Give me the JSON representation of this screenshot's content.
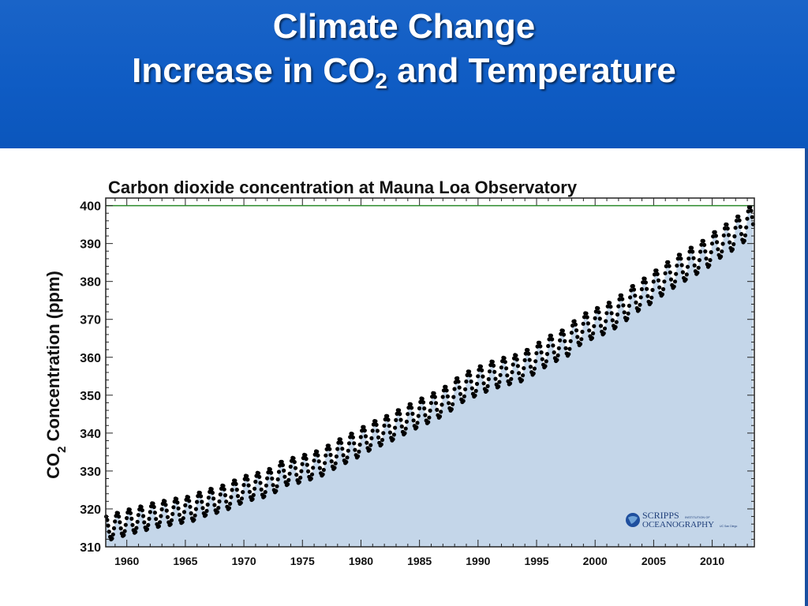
{
  "slide": {
    "title_line1": "Climate Change",
    "title_line2_pre": "Increase in CO",
    "title_line2_sub": "2",
    "title_line2_post": " and Temperature"
  },
  "colors": {
    "header_blue": "#1a64c8",
    "area_fill": "#c4d6e9",
    "data_points": "#000000",
    "reference_line": "#2a8a2a"
  },
  "logo": {
    "text_main_1": "SCRIPPS",
    "text_small": "INSTITUTION OF",
    "text_main_2": "OCEANOGRAPHY",
    "text_tiny": "UC San Diego"
  },
  "chart_data": {
    "type": "scatter",
    "title": "Carbon dioxide concentration at Mauna Loa Observatory",
    "ylabel_pre": "CO",
    "ylabel_sub": "2",
    "ylabel_post": " Concentration (ppm)",
    "xlabel": "",
    "xlim": [
      1958.2,
      2013.6
    ],
    "ylim": [
      310,
      402
    ],
    "x_ticks": [
      1960,
      1965,
      1970,
      1975,
      1980,
      1985,
      1990,
      1995,
      2000,
      2005,
      2010
    ],
    "y_ticks": [
      310,
      320,
      330,
      340,
      350,
      360,
      370,
      380,
      390,
      400
    ],
    "reference_line_y": 400,
    "area_fill_under_series": true,
    "grid": false,
    "series": [
      {
        "values_note": "annual mean CO2 (ppm)",
        "x": [
          1959,
          1960,
          1961,
          1962,
          1963,
          1964,
          1965,
          1966,
          1967,
          1968,
          1969,
          1970,
          1971,
          1972,
          1973,
          1974,
          1975,
          1976,
          1977,
          1978,
          1979,
          1980,
          1981,
          1982,
          1983,
          1984,
          1985,
          1986,
          1987,
          1988,
          1989,
          1990,
          1991,
          1992,
          1993,
          1994,
          1995,
          1996,
          1997,
          1998,
          1999,
          2000,
          2001,
          2002,
          2003,
          2004,
          2005,
          2006,
          2007,
          2008,
          2009,
          2010,
          2011,
          2012,
          2013
        ],
        "y": [
          316.0,
          316.9,
          317.6,
          318.5,
          319.0,
          319.6,
          320.0,
          321.4,
          322.2,
          323.1,
          324.6,
          325.7,
          326.3,
          327.5,
          329.7,
          330.2,
          331.1,
          332.0,
          333.8,
          335.4,
          336.8,
          338.7,
          340.1,
          341.4,
          343.0,
          344.6,
          346.0,
          347.4,
          349.2,
          351.6,
          353.1,
          354.4,
          355.6,
          356.5,
          357.1,
          358.8,
          360.8,
          362.6,
          363.7,
          366.7,
          368.4,
          369.6,
          371.1,
          373.2,
          375.8,
          377.5,
          379.8,
          381.9,
          383.8,
          385.6,
          387.4,
          389.9,
          391.7,
          393.9,
          396.5
        ],
        "seasonal_amplitude_ppm": 3.3
      }
    ]
  }
}
